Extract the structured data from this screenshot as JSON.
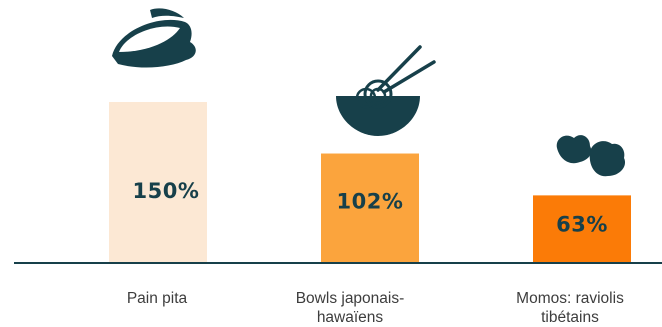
{
  "chart_data": {
    "type": "bar",
    "categories": [
      "Pain pita",
      "Bowls japonais-hawaïens",
      "Momos: raviolis tibétains"
    ],
    "values": [
      150,
      102,
      63
    ],
    "value_labels": [
      "150%",
      "102%",
      "63%"
    ],
    "bar_colors": [
      "#fce8d4",
      "#fba43d",
      "#fb7b07"
    ],
    "label_colors": [
      "#17404a",
      "#17404a",
      "#17404a"
    ],
    "icons": [
      "pita-bread-icon",
      "ramen-bowl-icon",
      "momos-dumplings-icon"
    ],
    "ylim": [
      0,
      150
    ],
    "axis_color": "#17404a",
    "grid": false,
    "title": "",
    "xlabel": "",
    "ylabel": ""
  }
}
